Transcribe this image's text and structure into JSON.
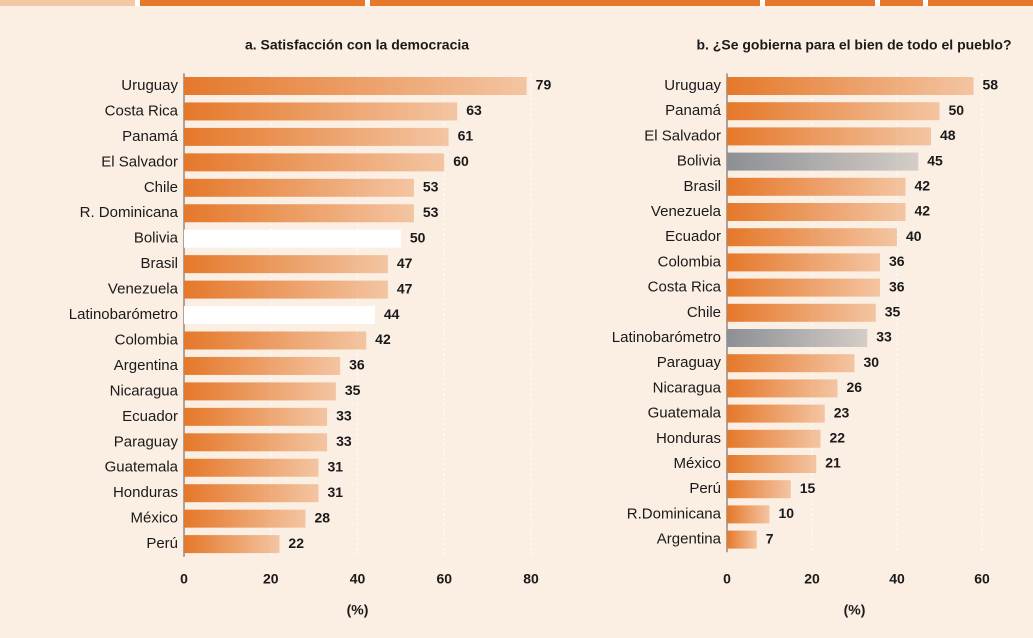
{
  "chart_data": [
    {
      "type": "barh",
      "title": "a. Satisfacción con la democracia",
      "categories": [
        "Uruguay",
        "Costa Rica",
        "Panamá",
        "El Salvador",
        "Chile",
        "R. Dominicana",
        "Bolivia",
        "Brasil",
        "Venezuela",
        "Latinobarómetro",
        "Colombia",
        "Argentina",
        "Nicaragua",
        "Ecuador",
        "Paraguay",
        "Guatemala",
        "Honduras",
        "México",
        "Perú"
      ],
      "values": [
        79,
        63,
        61,
        60,
        53,
        53,
        50,
        47,
        47,
        44,
        42,
        36,
        35,
        33,
        33,
        31,
        31,
        28,
        22
      ],
      "colors": [
        "#e5782a",
        "#e5782a",
        "#e5782a",
        "#e5782a",
        "#e5782a",
        "#e5782a",
        "#ffffff",
        "#e5782a",
        "#e5782a",
        "#ffffff",
        "#e5782a",
        "#e5782a",
        "#e5782a",
        "#e5782a",
        "#e5782a",
        "#e5782a",
        "#e5782a",
        "#e5782a",
        "#e5782a"
      ],
      "xlim": [
        0,
        80
      ],
      "xticks": [
        0,
        20,
        40,
        60,
        80
      ],
      "xlabel": "(%)",
      "grid": true
    },
    {
      "type": "barh",
      "title": "b. ¿Se gobierna para el bien de todo el pueblo?",
      "categories": [
        "Uruguay",
        "Panamá",
        "El Salvador",
        "Bolivia",
        "Brasil",
        "Venezuela",
        "Ecuador",
        "Colombia",
        "Costa Rica",
        "Chile",
        "Latinobarómetro",
        "Paraguay",
        "Nicaragua",
        "Guatemala",
        "Honduras",
        "México",
        "Perú",
        "R.Dominicana",
        "Argentina"
      ],
      "values": [
        58,
        50,
        48,
        45,
        42,
        42,
        40,
        36,
        36,
        35,
        33,
        30,
        26,
        23,
        22,
        21,
        15,
        10,
        7
      ],
      "colors": [
        "#e5782a",
        "#e5782a",
        "#e5782a",
        "#8c8f94",
        "#e5782a",
        "#e5782a",
        "#e5782a",
        "#e5782a",
        "#e5782a",
        "#e5782a",
        "#8c8f94",
        "#e5782a",
        "#e5782a",
        "#e5782a",
        "#e5782a",
        "#e5782a",
        "#e5782a",
        "#e5782a",
        "#e5782a"
      ],
      "xlim": [
        0,
        60
      ],
      "xticks": [
        0,
        20,
        40,
        60
      ],
      "xlabel": "(%)",
      "grid": true
    }
  ]
}
